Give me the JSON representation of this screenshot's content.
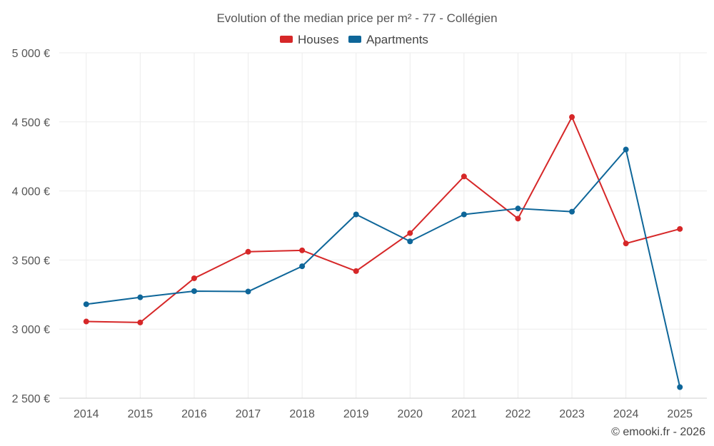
{
  "chart_data": {
    "type": "line",
    "title": "Evolution of the median price per m² - 77 - Collégien",
    "categories": [
      "2014",
      "2015",
      "2016",
      "2017",
      "2018",
      "2019",
      "2020",
      "2021",
      "2022",
      "2023",
      "2024",
      "2025"
    ],
    "y_ticks": [
      2500,
      3000,
      3500,
      4000,
      4500,
      5000
    ],
    "y_tick_labels": [
      "2 500 €",
      "3 000 €",
      "3 500 €",
      "4 000 €",
      "4 500 €",
      "5 000 €"
    ],
    "ylim": [
      2500,
      5000
    ],
    "grid": true,
    "legend_position": "top-center",
    "series": [
      {
        "name": "Houses",
        "color": "#d62728",
        "values": [
          3055,
          3048,
          3368,
          3560,
          3570,
          3420,
          3695,
          4105,
          3800,
          4535,
          3620,
          3725
        ]
      },
      {
        "name": "Apartments",
        "color": "#0e6699",
        "values": [
          3180,
          3230,
          3275,
          3272,
          3455,
          3830,
          3635,
          3830,
          3873,
          3850,
          4300,
          2580
        ]
      }
    ],
    "credit": "© emooki.fr - 2026"
  }
}
